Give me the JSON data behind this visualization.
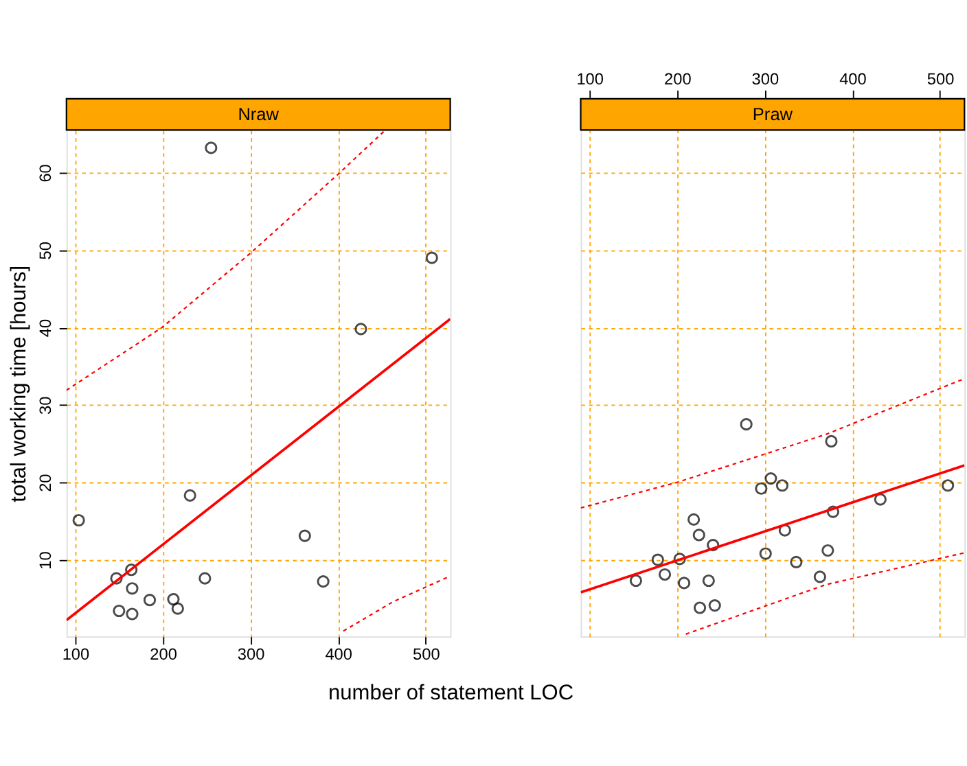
{
  "chart_data": [
    {
      "type": "scatter",
      "title": "Nraw",
      "xlabel": "number of statement LOC",
      "ylabel": "total working time [hours]",
      "xlim": [
        90,
        528
      ],
      "ylim": [
        0.1,
        65.5
      ],
      "xticks": [
        100,
        200,
        300,
        400,
        500
      ],
      "yticks": [
        10,
        20,
        30,
        40,
        50,
        60
      ],
      "grid": true,
      "series": [
        {
          "marker": "circle",
          "color": "#000000",
          "x": [
            104,
            255,
            231,
            147,
            164,
            165,
            150,
            165,
            185,
            212,
            217,
            248,
            362,
            383,
            426,
            507
          ],
          "values": [
            15.1,
            63.2,
            18.3,
            7.6,
            8.7,
            6.3,
            3.4,
            3.0,
            4.8,
            4.9,
            3.7,
            7.6,
            13.1,
            7.2,
            39.8,
            49.0
          ]
        },
        {
          "type": "line",
          "color": "#ff0000",
          "line_style": "solid",
          "x": [
            90,
            528
          ],
          "values": [
            2.2,
            41.1
          ]
        },
        {
          "type": "line",
          "color": "#ff0000",
          "line_style": "dashed",
          "x": [
            90,
            199,
            300,
            401,
            453
          ],
          "values": [
            31.9,
            40.0,
            49.6,
            59.9,
            65.4
          ]
        },
        {
          "type": "line",
          "color": "#ff0000",
          "line_style": "dashed",
          "x": [
            406,
            463,
            528
          ],
          "values": [
            0.8,
            4.6,
            7.9
          ]
        }
      ]
    },
    {
      "type": "scatter",
      "title": "Praw",
      "tick_labels": "x",
      "xlim": [
        90,
        528
      ],
      "ylim": [
        0.1,
        65.5
      ],
      "xticks": [
        100,
        200,
        300,
        400,
        500
      ],
      "yticks": [
        10,
        20,
        30,
        40,
        50,
        60
      ],
      "grid": true,
      "series": [
        {
          "marker": "circle",
          "color": "#000000",
          "x": [
            153,
            178,
            186,
            203,
            208,
            219,
            225,
            241,
            236,
            226,
            243,
            279,
            296,
            307,
            320,
            323,
            301,
            336,
            363,
            372,
            378,
            376,
            432,
            509
          ],
          "values": [
            7.3,
            10.0,
            8.1,
            10.1,
            7.0,
            15.2,
            13.2,
            11.9,
            7.3,
            3.8,
            4.1,
            27.5,
            19.2,
            20.5,
            19.6,
            13.8,
            10.8,
            9.7,
            7.8,
            11.2,
            16.2,
            25.3,
            17.8,
            19.6
          ]
        },
        {
          "type": "line",
          "color": "#ff0000",
          "line_style": "solid",
          "x": [
            90,
            528
          ],
          "values": [
            5.8,
            22.2
          ]
        },
        {
          "type": "line",
          "color": "#ff0000",
          "line_style": "dashed",
          "x": [
            90,
            200,
            370,
            528
          ],
          "values": [
            16.7,
            20.0,
            26.2,
            33.4
          ]
        },
        {
          "type": "line",
          "color": "#ff0000",
          "line_style": "dashed",
          "x": [
            210,
            370,
            528
          ],
          "values": [
            0.4,
            6.8,
            10.9
          ]
        }
      ]
    }
  ]
}
